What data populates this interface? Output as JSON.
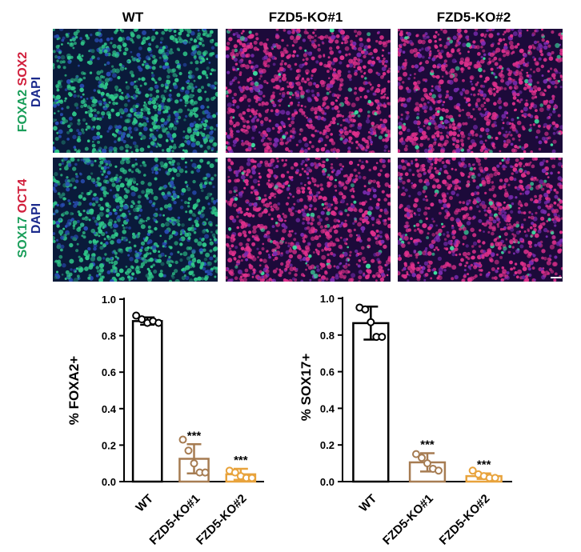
{
  "figure": {
    "columns": [
      "WT",
      "FZD5-KO#1",
      "FZD5-KO#2"
    ],
    "rows": [
      {
        "markers": [
          {
            "text": "FOXA2",
            "color": "#1a9e5a"
          },
          {
            "text": "SOX2",
            "color": "#d11f3c"
          }
        ],
        "dapi": "DAPI",
        "dapi_color": "#1b2a8c"
      },
      {
        "markers": [
          {
            "text": "SOX17",
            "color": "#1a9e5a"
          },
          {
            "text": "OCT4",
            "color": "#d11f3c"
          }
        ],
        "dapi": "DAPI",
        "dapi_color": "#1b2a8c"
      }
    ]
  },
  "chart_data": [
    {
      "type": "bar",
      "ylabel": "% FOXA2+",
      "ylim": [
        0,
        1.0
      ],
      "yticks": [
        "0.0",
        "0.2",
        "0.4",
        "0.6",
        "0.8",
        "1.0"
      ],
      "categories": [
        "WT",
        "FZD5-KO#1",
        "FZD5-KO#2"
      ],
      "values": [
        0.88,
        0.125,
        0.04
      ],
      "errors": [
        0.02,
        0.08,
        0.03
      ],
      "points": [
        [
          0.91,
          0.89,
          0.87,
          0.88,
          0.87
        ],
        [
          0.23,
          0.17,
          0.1,
          0.05,
          0.05
        ],
        [
          0.06,
          0.05,
          0.03,
          0.02,
          0.02
        ]
      ],
      "significance": [
        "",
        "***",
        "***"
      ],
      "colors": [
        "#000000",
        "#a67c52",
        "#e8a33c"
      ]
    },
    {
      "type": "bar",
      "ylabel": "% SOX17+",
      "ylim": [
        0,
        1.0
      ],
      "yticks": [
        "0.0",
        "0.2",
        "0.4",
        "0.6",
        "0.8",
        "1.0"
      ],
      "categories": [
        "WT",
        "FZD5-KO#1",
        "FZD5-KO#2"
      ],
      "values": [
        0.865,
        0.105,
        0.03
      ],
      "errors": [
        0.09,
        0.05,
        0.015
      ],
      "points": [
        [
          0.95,
          0.94,
          0.87,
          0.79,
          0.79
        ],
        [
          0.15,
          0.13,
          0.1,
          0.07,
          0.06
        ],
        [
          0.06,
          0.04,
          0.03,
          0.02,
          0.02
        ]
      ],
      "significance": [
        "",
        "***",
        "***"
      ],
      "colors": [
        "#000000",
        "#a67c52",
        "#e8a33c"
      ]
    }
  ]
}
